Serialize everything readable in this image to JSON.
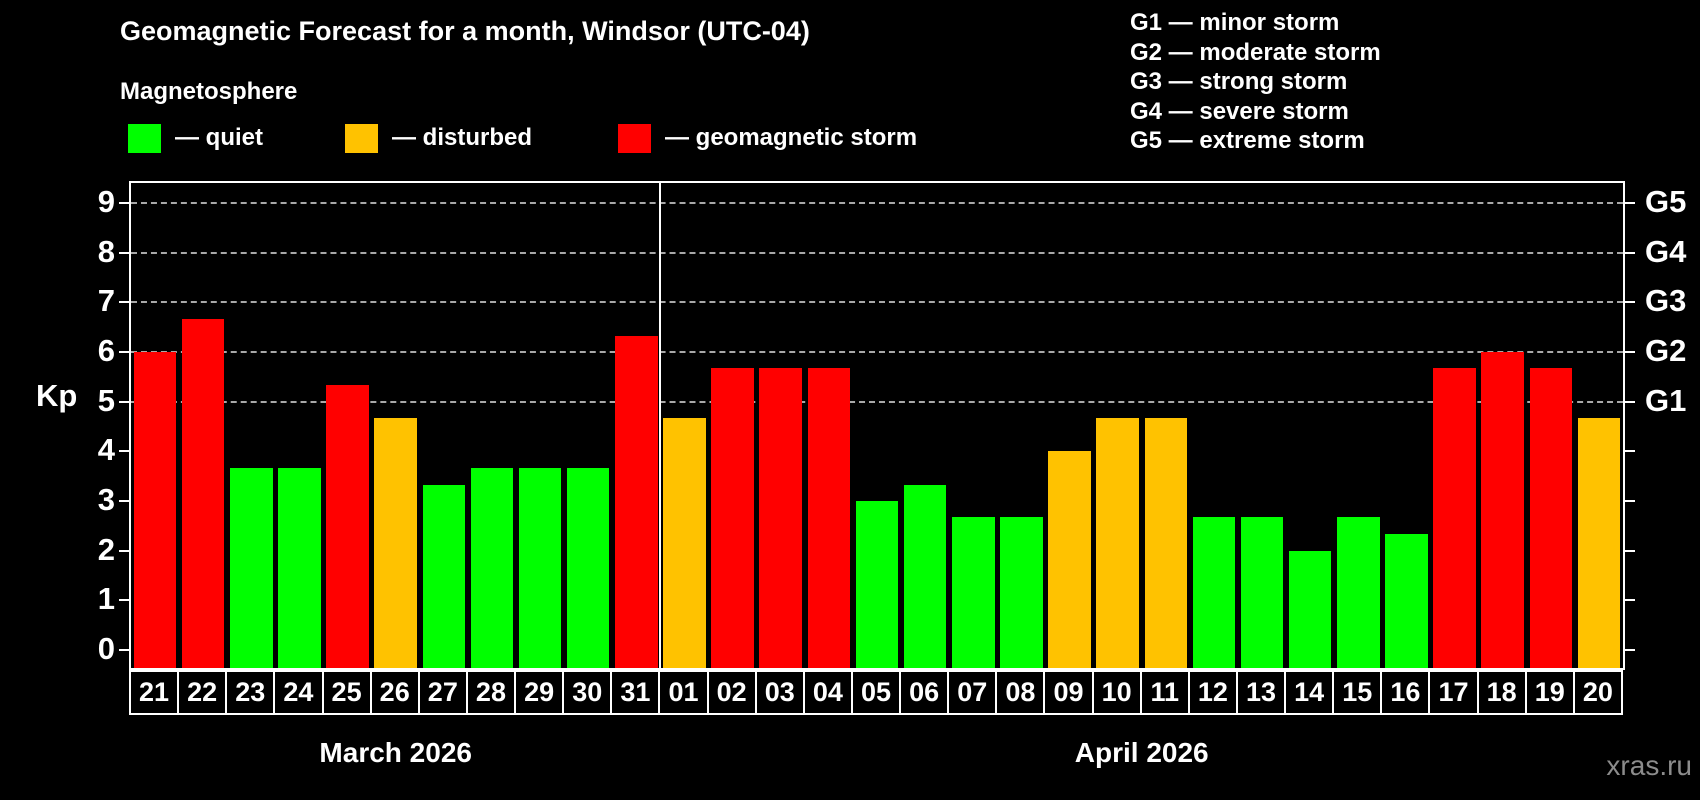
{
  "header": {
    "title": "Geomagnetic Forecast for a month, Windsor (UTC-04)",
    "subtitle": "Magnetosphere",
    "legend": [
      {
        "key": "quiet",
        "label": "— quiet"
      },
      {
        "key": "disturbed",
        "label": "— disturbed"
      },
      {
        "key": "storm",
        "label": "— geomagnetic storm"
      }
    ],
    "g_scale_legend": [
      "G1 — minor storm",
      "G2 — moderate storm",
      "G3 — strong storm",
      "G4 — severe storm",
      "G5 — extreme storm"
    ]
  },
  "chart_data": {
    "type": "bar",
    "title": "Geomagnetic Forecast for a month, Windsor (UTC-04)",
    "ylabel": "Kp",
    "ylim": [
      0,
      9
    ],
    "yticks": [
      "0",
      "1",
      "2",
      "3",
      "4",
      "5",
      "6",
      "7",
      "8",
      "9"
    ],
    "grid_levels": [
      5,
      6,
      7,
      8,
      9
    ],
    "right_axis": [
      {
        "kp": 5,
        "label": "G1"
      },
      {
        "kp": 6,
        "label": "G2"
      },
      {
        "kp": 7,
        "label": "G3"
      },
      {
        "kp": 8,
        "label": "G4"
      },
      {
        "kp": 9,
        "label": "G5"
      }
    ],
    "legend_position": "top",
    "grid": "dashed horizontal at G levels only",
    "months": [
      {
        "label": "March 2026",
        "days": [
          {
            "date": "21",
            "kp": 6.0,
            "condition": "storm"
          },
          {
            "date": "22",
            "kp": 6.67,
            "condition": "storm"
          },
          {
            "date": "23",
            "kp": 3.67,
            "condition": "quiet"
          },
          {
            "date": "24",
            "kp": 3.67,
            "condition": "quiet"
          },
          {
            "date": "25",
            "kp": 5.33,
            "condition": "storm"
          },
          {
            "date": "26",
            "kp": 4.67,
            "condition": "disturbed"
          },
          {
            "date": "27",
            "kp": 3.33,
            "condition": "quiet"
          },
          {
            "date": "28",
            "kp": 3.67,
            "condition": "quiet"
          },
          {
            "date": "29",
            "kp": 3.67,
            "condition": "quiet"
          },
          {
            "date": "30",
            "kp": 3.67,
            "condition": "quiet"
          },
          {
            "date": "31",
            "kp": 6.33,
            "condition": "storm"
          }
        ]
      },
      {
        "label": "April 2026",
        "days": [
          {
            "date": "01",
            "kp": 4.67,
            "condition": "disturbed"
          },
          {
            "date": "02",
            "kp": 5.67,
            "condition": "storm"
          },
          {
            "date": "03",
            "kp": 5.67,
            "condition": "storm"
          },
          {
            "date": "04",
            "kp": 5.67,
            "condition": "storm"
          },
          {
            "date": "05",
            "kp": 3.0,
            "condition": "quiet"
          },
          {
            "date": "06",
            "kp": 3.33,
            "condition": "quiet"
          },
          {
            "date": "07",
            "kp": 2.67,
            "condition": "quiet"
          },
          {
            "date": "08",
            "kp": 2.67,
            "condition": "quiet"
          },
          {
            "date": "09",
            "kp": 4.0,
            "condition": "disturbed"
          },
          {
            "date": "10",
            "kp": 4.67,
            "condition": "disturbed"
          },
          {
            "date": "11",
            "kp": 4.67,
            "condition": "disturbed"
          },
          {
            "date": "12",
            "kp": 2.67,
            "condition": "quiet"
          },
          {
            "date": "13",
            "kp": 2.67,
            "condition": "quiet"
          },
          {
            "date": "14",
            "kp": 2.0,
            "condition": "quiet"
          },
          {
            "date": "15",
            "kp": 2.67,
            "condition": "quiet"
          },
          {
            "date": "16",
            "kp": 2.33,
            "condition": "quiet"
          },
          {
            "date": "17",
            "kp": 5.67,
            "condition": "storm"
          },
          {
            "date": "18",
            "kp": 6.0,
            "condition": "storm"
          },
          {
            "date": "19",
            "kp": 5.67,
            "condition": "storm"
          },
          {
            "date": "20",
            "kp": 4.67,
            "condition": "disturbed"
          }
        ]
      }
    ]
  },
  "colors": {
    "quiet": "#00ff00",
    "disturbed": "#ffc200",
    "storm": "#ff0000",
    "axis": "#ffffff",
    "grid": "#a8a8a8",
    "background": "#000000",
    "watermark": "#8c8c8c"
  },
  "footer": {
    "watermark": "xras.ru"
  }
}
